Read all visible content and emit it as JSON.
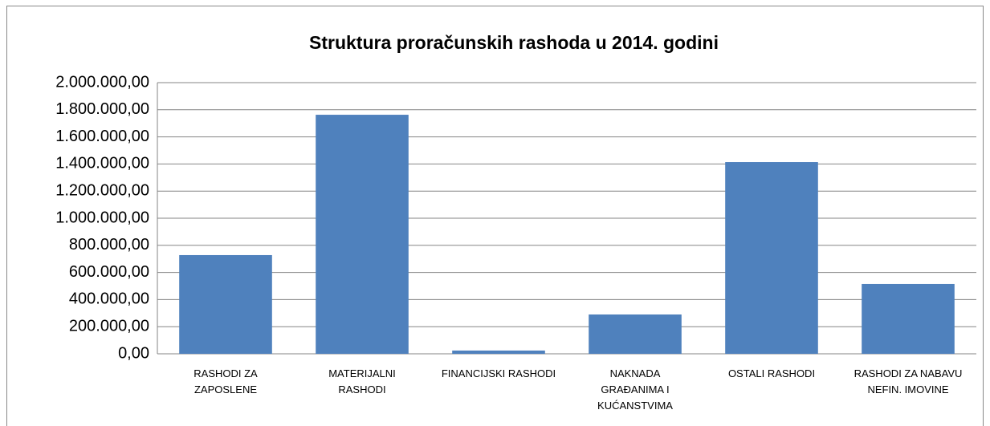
{
  "chart_data": {
    "type": "bar",
    "title": "Struktura proračunskih rashoda u 2014. godini",
    "categories": [
      "RASHODI ZA\nZAPOSLENE",
      "MATERIJALNI\nRASHODI",
      "FINANCIJSKI RASHODI",
      "NAKNADA\nGRAĐANIMA I\nKUĆANSTVIMA",
      "OSTALI RASHODI",
      "RASHODI ZA NABAVU\nNEFIN. IMOVINE"
    ],
    "values": [
      728000,
      1763000,
      24000,
      290000,
      1414000,
      515000
    ],
    "color": "#4f81bd",
    "ylim": [
      0,
      2000000
    ],
    "yticks": [
      {
        "value": 0,
        "label": "0,00"
      },
      {
        "value": 200000,
        "label": "200.000,00"
      },
      {
        "value": 400000,
        "label": "400.000,00"
      },
      {
        "value": 600000,
        "label": "600.000,00"
      },
      {
        "value": 800000,
        "label": "800.000,00"
      },
      {
        "value": 1000000,
        "label": "1.000.000,00"
      },
      {
        "value": 1200000,
        "label": "1.200.000,00"
      },
      {
        "value": 1400000,
        "label": "1.400.000,00"
      },
      {
        "value": 1600000,
        "label": "1.600.000,00"
      },
      {
        "value": 1800000,
        "label": "1.800.000,00"
      },
      {
        "value": 2000000,
        "label": "2.000.000,00"
      }
    ],
    "grid": true
  }
}
